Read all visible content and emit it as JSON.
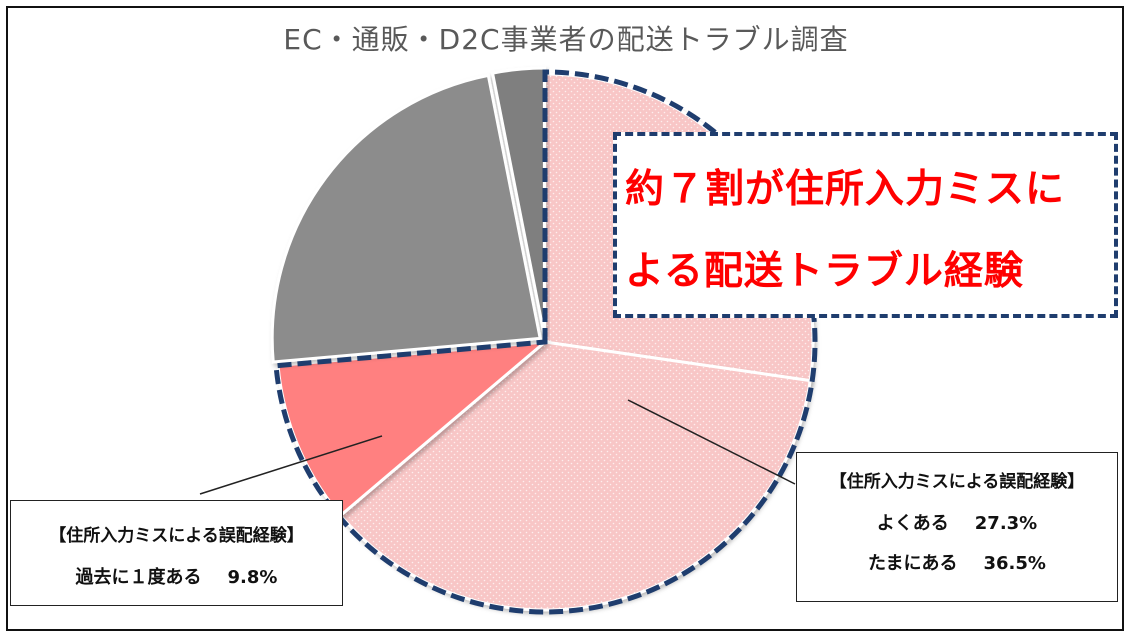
{
  "chart_data": {
    "type": "pie",
    "title": "EC・通販・D2C事業者の配送トラブル調査",
    "slices": [
      {
        "label": "よくある",
        "value": 27.3,
        "color": "#f8c6c6",
        "group": "住所入力ミス"
      },
      {
        "label": "たまにある",
        "value": 36.5,
        "color": "#f8c6c6",
        "group": "住所入力ミス"
      },
      {
        "label": "過去に１度ある",
        "value": 9.8,
        "color": "#ff8080",
        "group": "住所入力ミス"
      },
      {
        "value": 23.3,
        "color": "#8c8c8c"
      },
      {
        "value": 3.1,
        "color": "#7f7f7f"
      }
    ],
    "highlight_border_color": "#1f3d6e"
  },
  "headline": {
    "line1": "約７割が住所入力ミスに",
    "line2": "よる配送トラブル経験",
    "color": "#ff0000"
  },
  "callouts": {
    "left": {
      "heading": "【住所入力ミスによる誤配経験】",
      "label": "過去に１度ある",
      "value": "9.8%"
    },
    "right": {
      "heading": "【住所入力ミスによる誤配経験】",
      "row1_label": "よくある",
      "row1_value": "27.3%",
      "row2_label": "たまにある",
      "row2_value": "36.5%"
    }
  }
}
